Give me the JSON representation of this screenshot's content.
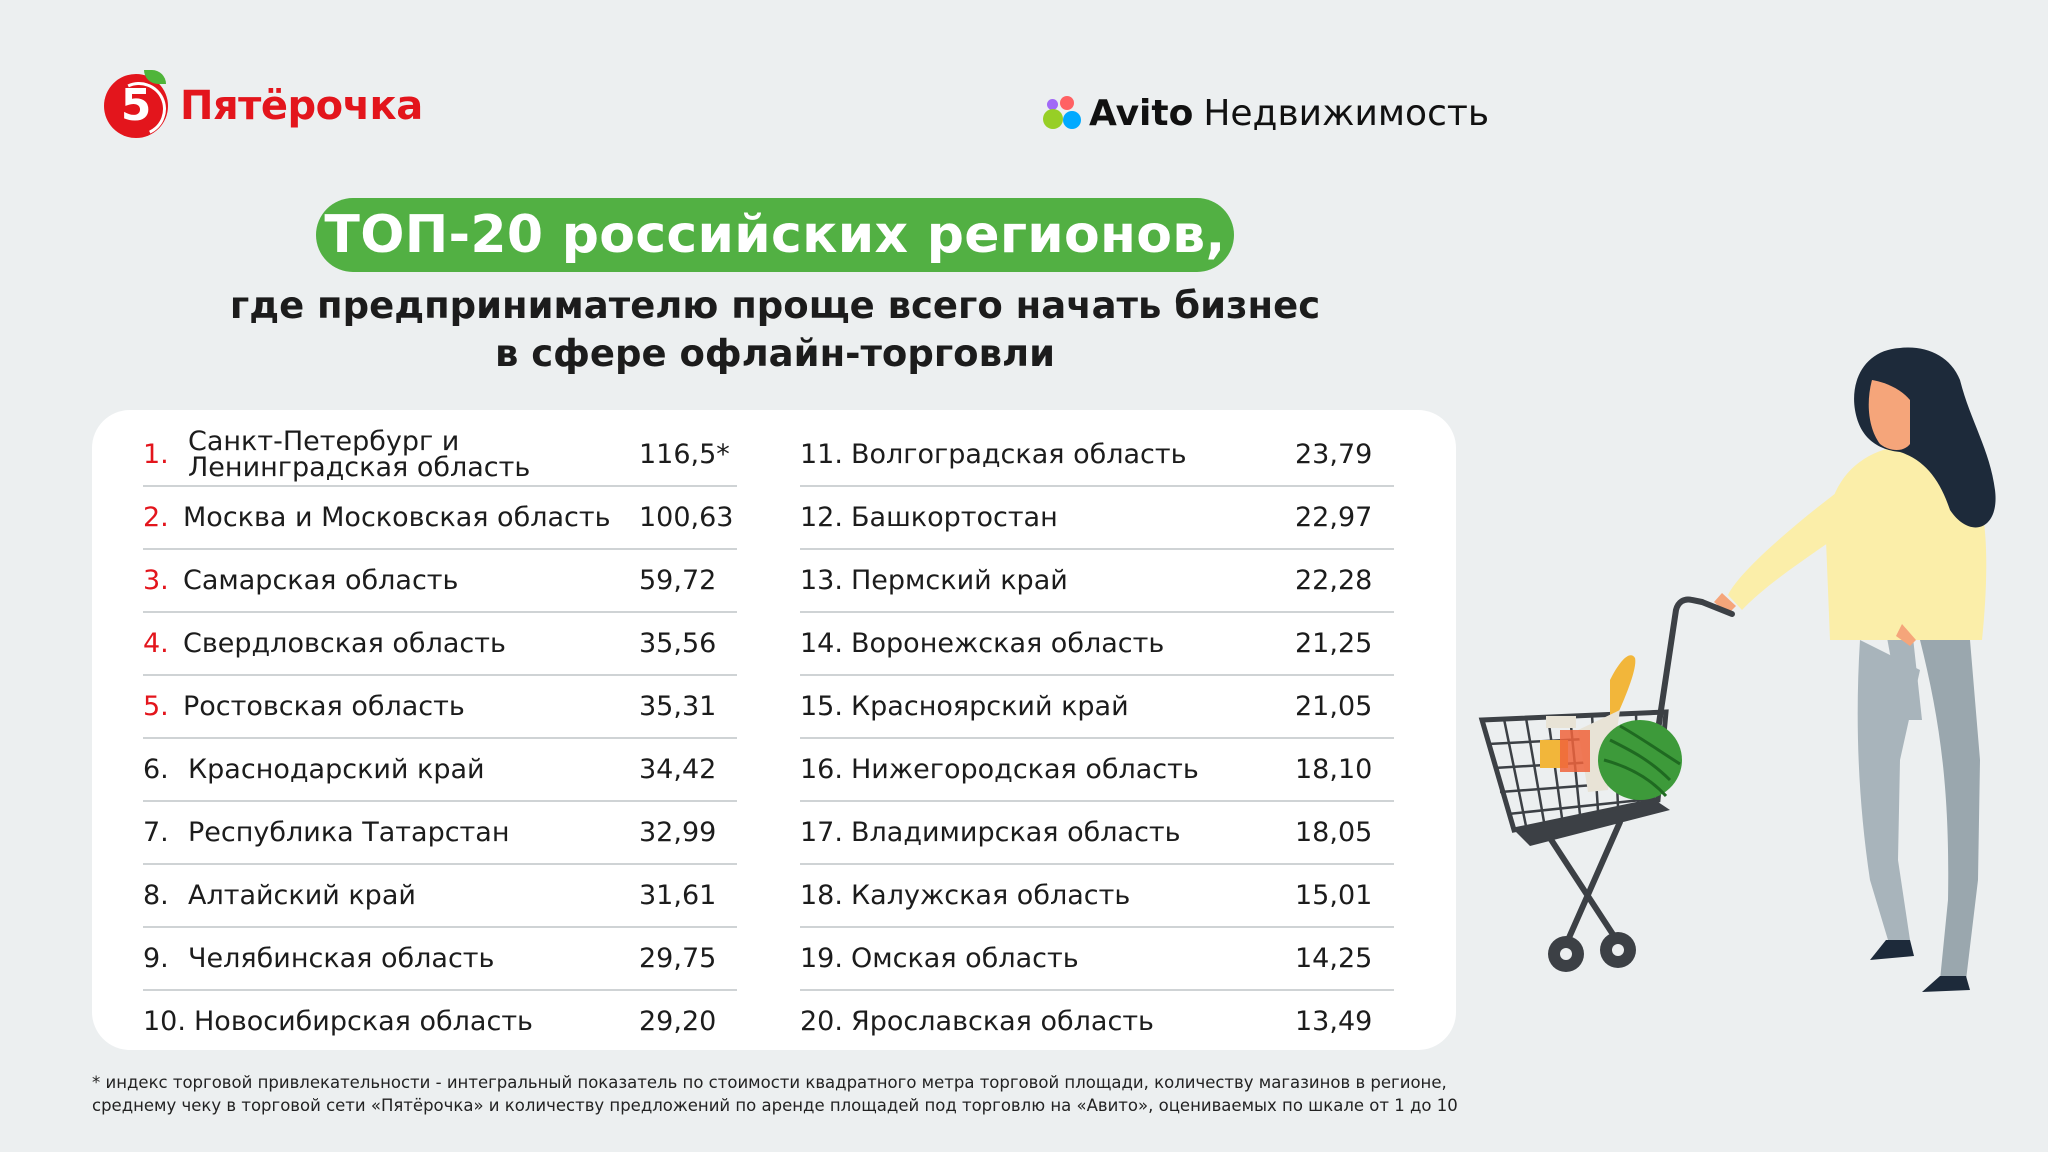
{
  "header": {
    "left_logo": {
      "mark": "5",
      "name": "Пятёрочка",
      "color": "#e3151c"
    },
    "right_logo": {
      "brand": "Avito",
      "sub": "Недвижимость",
      "dot_colors": [
        "#00aaff",
        "#97cf26",
        "#ff6163",
        "#a169f7"
      ]
    }
  },
  "title": {
    "pill": "ТОП-20 российских регионов,",
    "line1": "где предпринимателю проще всего начать бизнес",
    "line2": "в сфере офлайн-торговли",
    "pill_color": "#52b043"
  },
  "table": {
    "left": [
      {
        "num": "1.",
        "name": "Санкт-Петербург и",
        "name2": "Ленинградская область",
        "value": "116,5*"
      },
      {
        "num": "2.",
        "name": "Москва и Московская область",
        "value": "100,63"
      },
      {
        "num": "3.",
        "name": "Самарская область",
        "value": "59,72"
      },
      {
        "num": "4.",
        "name": "Свердловская область",
        "value": "35,56"
      },
      {
        "num": "5.",
        "name": "Ростовская область",
        "value": "35,31"
      },
      {
        "num": "6.",
        "name": "Краснодарский край",
        "value": "34,42"
      },
      {
        "num": "7.",
        "name": "Республика Татарстан",
        "value": "32,99"
      },
      {
        "num": "8.",
        "name": "Алтайский край",
        "value": "31,61"
      },
      {
        "num": "9.",
        "name": "Челябинская область",
        "value": "29,75"
      },
      {
        "num": "10.",
        "name": "Новосибирская область",
        "value": "29,20"
      }
    ],
    "right": [
      {
        "num": "11.",
        "name": "Волгоградская область",
        "value": "23,79"
      },
      {
        "num": "12.",
        "name": "Башкортостан",
        "value": "22,97"
      },
      {
        "num": "13.",
        "name": "Пермский край",
        "value": "22,28"
      },
      {
        "num": "14.",
        "name": "Воронежская область",
        "value": "21,25"
      },
      {
        "num": "15.",
        "name": "Красноярский край",
        "value": "21,05"
      },
      {
        "num": "16.",
        "name": "Нижегородская область",
        "value": "18,10"
      },
      {
        "num": "17.",
        "name": "Владимирская область",
        "value": "18,05"
      },
      {
        "num": "18.",
        "name": "Калужская область",
        "value": "15,01"
      },
      {
        "num": "19.",
        "name": "Омская область",
        "value": "14,25"
      },
      {
        "num": "20.",
        "name": "Ярославская область",
        "value": "13,49"
      }
    ],
    "highlight_color": "#e3151c"
  },
  "footnote": {
    "line1": "* индекс торговой привлекательности - интегральный показатель по стоимости квадратного метра торговой площади, количеству магазинов в регионе,",
    "line2": "среднему чеку в торговой сети «Пятёрочка» и количеству предложений по аренде площадей под торговлю на «Авито», оцениваемых по шкале от 1 до 10"
  },
  "illustration": {
    "subject": "woman-with-shopping-cart"
  }
}
